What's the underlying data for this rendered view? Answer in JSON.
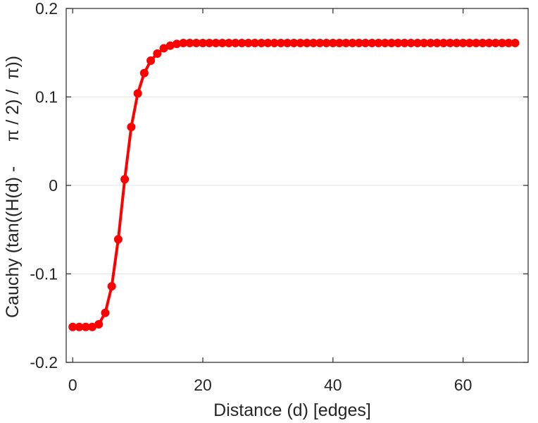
{
  "chart_data": {
    "type": "line",
    "xlabel": "Distance (d) [edges]",
    "ylabel": "Cauchy (tan((H(d) -     π / 2) /  π))",
    "xlim": [
      -1,
      70
    ],
    "ylim": [
      -0.2,
      0.2
    ],
    "xticks": [
      0,
      20,
      40,
      60
    ],
    "yticks": [
      -0.2,
      -0.1,
      0,
      0.1,
      0.2
    ],
    "xtick_labels": [
      "0",
      "20",
      "40",
      "60"
    ],
    "ytick_labels": [
      "-0.2",
      "-0.1",
      "0",
      "0.1",
      "0.2"
    ],
    "grid": "horizontal",
    "legend": "none",
    "colors": {
      "series": "#ff0000",
      "axis": "#262626",
      "grid": "#e6e6e6"
    },
    "series": [
      {
        "marker": "circle",
        "x": [
          0,
          1,
          2,
          3,
          4,
          5,
          6,
          7,
          8,
          9,
          10,
          11,
          12,
          13,
          14,
          15,
          16,
          17,
          18,
          19,
          20,
          21,
          22,
          23,
          24,
          25,
          26,
          27,
          28,
          29,
          30,
          31,
          32,
          33,
          34,
          35,
          36,
          37,
          38,
          39,
          40,
          41,
          42,
          43,
          44,
          45,
          46,
          47,
          48,
          49,
          50,
          51,
          52,
          53,
          54,
          55,
          56,
          57,
          58,
          59,
          60,
          61,
          62,
          63,
          64,
          65,
          66,
          67,
          68
        ],
        "y": [
          -0.16,
          -0.16,
          -0.16,
          -0.16,
          -0.157,
          -0.144,
          -0.114,
          -0.061,
          0.007,
          0.066,
          0.104,
          0.127,
          0.141,
          0.149,
          0.155,
          0.158,
          0.16,
          0.161,
          0.161,
          0.161,
          0.161,
          0.161,
          0.161,
          0.161,
          0.161,
          0.161,
          0.161,
          0.161,
          0.161,
          0.161,
          0.161,
          0.161,
          0.161,
          0.161,
          0.161,
          0.161,
          0.161,
          0.161,
          0.161,
          0.161,
          0.161,
          0.161,
          0.161,
          0.161,
          0.161,
          0.161,
          0.161,
          0.161,
          0.161,
          0.161,
          0.161,
          0.161,
          0.161,
          0.161,
          0.161,
          0.161,
          0.161,
          0.161,
          0.161,
          0.161,
          0.161,
          0.161,
          0.161,
          0.161,
          0.161,
          0.161,
          0.161,
          0.161,
          0.161
        ]
      }
    ]
  }
}
